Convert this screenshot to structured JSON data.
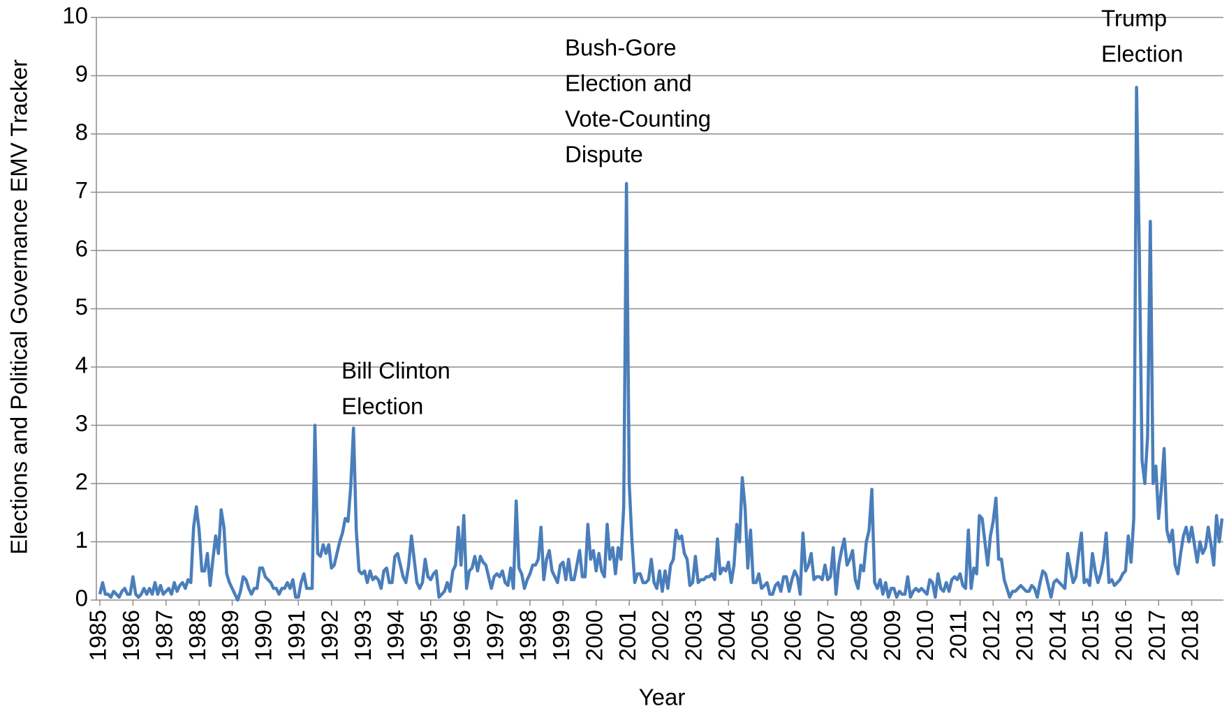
{
  "chart_data": {
    "type": "line",
    "x_label": "Year",
    "y_label": "Elections and Political Governance EMV Tracker",
    "categories": [
      "1985",
      null,
      null,
      null,
      null,
      null,
      null,
      null,
      null,
      null,
      null,
      null,
      "1986",
      null,
      null,
      null,
      null,
      null,
      null,
      null,
      null,
      null,
      null,
      null,
      "1987",
      null,
      null,
      null,
      null,
      null,
      null,
      null,
      null,
      null,
      null,
      null,
      "1988",
      null,
      null,
      null,
      null,
      null,
      null,
      null,
      null,
      null,
      null,
      null,
      "1989",
      null,
      null,
      null,
      null,
      null,
      null,
      null,
      null,
      null,
      null,
      null,
      "1990",
      null,
      null,
      null,
      null,
      null,
      null,
      null,
      null,
      null,
      null,
      null,
      "1991",
      null,
      null,
      null,
      null,
      null,
      null,
      null,
      null,
      null,
      null,
      null,
      "1992",
      null,
      null,
      null,
      null,
      null,
      null,
      null,
      null,
      null,
      null,
      null,
      "1993",
      null,
      null,
      null,
      null,
      null,
      null,
      null,
      null,
      null,
      null,
      null,
      "1994",
      null,
      null,
      null,
      null,
      null,
      null,
      null,
      null,
      null,
      null,
      null,
      "1995",
      null,
      null,
      null,
      null,
      null,
      null,
      null,
      null,
      null,
      null,
      null,
      "1996",
      null,
      null,
      null,
      null,
      null,
      null,
      null,
      null,
      null,
      null,
      null,
      "1997",
      null,
      null,
      null,
      null,
      null,
      null,
      null,
      null,
      null,
      null,
      null,
      "1998",
      null,
      null,
      null,
      null,
      null,
      null,
      null,
      null,
      null,
      null,
      null,
      "1999",
      null,
      null,
      null,
      null,
      null,
      null,
      null,
      null,
      null,
      null,
      null,
      "2000",
      null,
      null,
      null,
      null,
      null,
      null,
      null,
      null,
      null,
      null,
      null,
      "2001",
      null,
      null,
      null,
      null,
      null,
      null,
      null,
      null,
      null,
      null,
      null,
      "2002",
      null,
      null,
      null,
      null,
      null,
      null,
      null,
      null,
      null,
      null,
      null,
      "2003",
      null,
      null,
      null,
      null,
      null,
      null,
      null,
      null,
      null,
      null,
      null,
      "2004",
      null,
      null,
      null,
      null,
      null,
      null,
      null,
      null,
      null,
      null,
      null,
      "2005",
      null,
      null,
      null,
      null,
      null,
      null,
      null,
      null,
      null,
      null,
      null,
      "2006",
      null,
      null,
      null,
      null,
      null,
      null,
      null,
      null,
      null,
      null,
      null,
      "2007",
      null,
      null,
      null,
      null,
      null,
      null,
      null,
      null,
      null,
      null,
      null,
      "2008",
      null,
      null,
      null,
      null,
      null,
      null,
      null,
      null,
      null,
      null,
      null,
      "2009",
      null,
      null,
      null,
      null,
      null,
      null,
      null,
      null,
      null,
      null,
      null,
      "2010",
      null,
      null,
      null,
      null,
      null,
      null,
      null,
      null,
      null,
      null,
      null,
      "2011",
      null,
      null,
      null,
      null,
      null,
      null,
      null,
      null,
      null,
      null,
      null,
      "2012",
      null,
      null,
      null,
      null,
      null,
      null,
      null,
      null,
      null,
      null,
      null,
      "2013",
      null,
      null,
      null,
      null,
      null,
      null,
      null,
      null,
      null,
      null,
      null,
      "2014",
      null,
      null,
      null,
      null,
      null,
      null,
      null,
      null,
      null,
      null,
      null,
      "2015",
      null,
      null,
      null,
      null,
      null,
      null,
      null,
      null,
      null,
      null,
      null,
      "2016",
      null,
      null,
      null,
      null,
      null,
      null,
      null,
      null,
      null,
      null,
      null,
      "2017",
      null,
      null,
      null,
      null,
      null,
      null,
      null,
      null,
      null,
      null,
      null,
      "2018",
      null,
      null,
      null,
      null,
      null,
      null,
      null,
      null,
      null,
      null,
      null
    ],
    "values": [
      0.1,
      0.3,
      0.1,
      0.1,
      0.05,
      0.15,
      0.1,
      0.05,
      0.15,
      0.2,
      0.1,
      0.1,
      0.4,
      0.1,
      0.05,
      0.1,
      0.2,
      0.1,
      0.2,
      0.1,
      0.3,
      0.1,
      0.25,
      0.1,
      0.15,
      0.2,
      0.1,
      0.3,
      0.15,
      0.25,
      0.3,
      0.2,
      0.35,
      0.3,
      1.25,
      1.6,
      1.2,
      0.5,
      0.5,
      0.8,
      0.25,
      0.7,
      1.1,
      0.8,
      1.55,
      1.25,
      0.45,
      0.3,
      0.2,
      0.1,
      0.0,
      0.15,
      0.4,
      0.35,
      0.2,
      0.1,
      0.2,
      0.2,
      0.55,
      0.55,
      0.4,
      0.35,
      0.3,
      0.2,
      0.2,
      0.1,
      0.2,
      0.2,
      0.3,
      0.2,
      0.35,
      0.05,
      0.05,
      0.3,
      0.45,
      0.2,
      0.2,
      0.2,
      3.0,
      0.8,
      0.75,
      0.95,
      0.8,
      0.95,
      0.55,
      0.6,
      0.8,
      1.0,
      1.15,
      1.4,
      1.35,
      1.95,
      2.95,
      1.2,
      0.5,
      0.45,
      0.5,
      0.3,
      0.5,
      0.35,
      0.4,
      0.35,
      0.2,
      0.5,
      0.55,
      0.3,
      0.3,
      0.75,
      0.8,
      0.6,
      0.4,
      0.3,
      0.6,
      1.1,
      0.7,
      0.3,
      0.2,
      0.3,
      0.7,
      0.4,
      0.35,
      0.45,
      0.5,
      0.05,
      0.1,
      0.15,
      0.3,
      0.15,
      0.5,
      0.6,
      1.25,
      0.6,
      1.45,
      0.2,
      0.5,
      0.55,
      0.75,
      0.5,
      0.75,
      0.65,
      0.6,
      0.4,
      0.2,
      0.4,
      0.45,
      0.4,
      0.5,
      0.3,
      0.25,
      0.55,
      0.2,
      1.7,
      0.55,
      0.45,
      0.2,
      0.35,
      0.45,
      0.6,
      0.6,
      0.7,
      1.25,
      0.35,
      0.7,
      0.85,
      0.5,
      0.4,
      0.3,
      0.6,
      0.65,
      0.35,
      0.7,
      0.35,
      0.35,
      0.6,
      0.85,
      0.4,
      0.4,
      1.3,
      0.7,
      0.85,
      0.5,
      0.8,
      0.5,
      0.4,
      1.3,
      0.7,
      0.9,
      0.45,
      0.9,
      0.7,
      1.6,
      7.15,
      2.0,
      1.0,
      0.3,
      0.45,
      0.45,
      0.3,
      0.3,
      0.35,
      0.7,
      0.3,
      0.2,
      0.5,
      0.15,
      0.5,
      0.2,
      0.6,
      0.7,
      1.2,
      1.05,
      1.1,
      0.8,
      0.7,
      0.25,
      0.3,
      0.75,
      0.3,
      0.35,
      0.35,
      0.4,
      0.4,
      0.45,
      0.35,
      1.05,
      0.45,
      0.55,
      0.5,
      0.65,
      0.3,
      0.6,
      1.3,
      1.0,
      2.1,
      1.6,
      0.55,
      1.2,
      0.3,
      0.3,
      0.45,
      0.2,
      0.25,
      0.3,
      0.1,
      0.1,
      0.25,
      0.3,
      0.15,
      0.4,
      0.4,
      0.15,
      0.35,
      0.5,
      0.4,
      0.1,
      1.15,
      0.5,
      0.6,
      0.8,
      0.35,
      0.4,
      0.4,
      0.35,
      0.6,
      0.35,
      0.4,
      0.9,
      0.1,
      0.6,
      0.85,
      1.05,
      0.6,
      0.7,
      0.85,
      0.35,
      0.2,
      0.6,
      0.5,
      1.0,
      1.2,
      1.9,
      0.3,
      0.2,
      0.35,
      0.1,
      0.3,
      0.05,
      0.2,
      0.2,
      0.05,
      0.15,
      0.1,
      0.1,
      0.4,
      0.05,
      0.15,
      0.2,
      0.15,
      0.2,
      0.15,
      0.1,
      0.35,
      0.3,
      0.05,
      0.45,
      0.2,
      0.15,
      0.3,
      0.15,
      0.35,
      0.4,
      0.35,
      0.45,
      0.25,
      0.2,
      1.2,
      0.2,
      0.55,
      0.45,
      1.45,
      1.4,
      1.0,
      0.6,
      1.1,
      1.35,
      1.75,
      0.7,
      0.7,
      0.35,
      0.2,
      0.05,
      0.15,
      0.15,
      0.2,
      0.25,
      0.2,
      0.15,
      0.15,
      0.25,
      0.2,
      0.05,
      0.3,
      0.5,
      0.45,
      0.25,
      0.05,
      0.3,
      0.35,
      0.3,
      0.25,
      0.2,
      0.8,
      0.55,
      0.3,
      0.4,
      0.8,
      1.15,
      0.3,
      0.35,
      0.25,
      0.8,
      0.5,
      0.3,
      0.45,
      0.7,
      1.15,
      0.3,
      0.35,
      0.25,
      0.3,
      0.35,
      0.45,
      0.5,
      1.1,
      0.65,
      1.4,
      8.8,
      6.0,
      2.4,
      2.0,
      2.8,
      6.5,
      2.0,
      2.3,
      1.4,
      1.9,
      2.6,
      1.2,
      1.0,
      1.2,
      0.6,
      0.45,
      0.8,
      1.1,
      1.25,
      1.0,
      1.25,
      0.95,
      0.65,
      1.0,
      0.8,
      0.9,
      1.25,
      0.95,
      0.6,
      1.45,
      1.0,
      1.4
    ],
    "color": "#4a7ebb",
    "ylim": [
      0,
      10
    ],
    "yticks": [
      0,
      1,
      2,
      3,
      4,
      5,
      6,
      7,
      8,
      9,
      10
    ],
    "grid": true,
    "annotations": [
      [
        "Bill Clinton",
        "Election"
      ],
      [
        "Bush-Gore",
        "Election and",
        "Vote-Counting",
        "Dispute"
      ],
      [
        "Trump",
        "Election"
      ]
    ]
  }
}
